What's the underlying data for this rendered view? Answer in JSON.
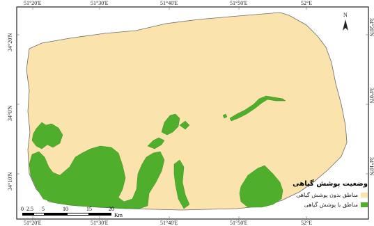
{
  "map": {
    "colors": {
      "frame": "#222222",
      "graticule": "#555555",
      "no_vegetation": "#FBE3AE",
      "with_vegetation": "#4FAF2C",
      "outline": "#555555"
    },
    "lon_labels_top": [
      "51°20'E",
      "51°30'E",
      "51°40'E",
      "51°50'E",
      "52°E"
    ],
    "lon_labels_bottom": [
      "51°20'E",
      "51°30'E",
      "51°40'E",
      "51°50'E",
      "52°E"
    ],
    "lat_labels_left": [
      "34°20'N",
      "34°0'N",
      "34°10'N"
    ],
    "lat_labels_right": [
      "34°20'N",
      "34°0'N",
      "34°10'N"
    ],
    "north_arrow": {
      "letter": "N",
      "icon": "north-arrow-icon"
    }
  },
  "legend": {
    "title": "وضعیت پوشش گیاهی",
    "items": [
      {
        "label": "مناطق بدون پوشش گیاهی",
        "color": "#FBE3AE"
      },
      {
        "label": "مناطق با پوشش گیاهی",
        "color": "#4FAF2C"
      }
    ]
  },
  "scale": {
    "ticks": [
      "0",
      "2.5",
      "5",
      "10",
      "15",
      "20"
    ],
    "unit": "Km"
  }
}
